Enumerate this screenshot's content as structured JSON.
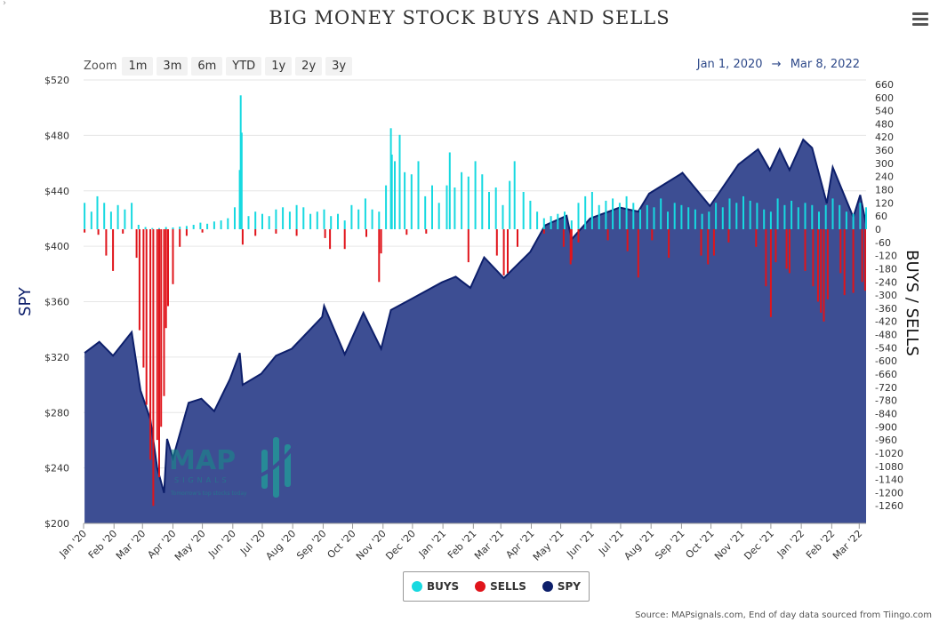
{
  "corner_mark": "›",
  "title": "BIG MONEY STOCK BUYS AND SELLS",
  "zoom": {
    "label": "Zoom",
    "buttons": [
      "1m",
      "3m",
      "6m",
      "YTD",
      "1y",
      "2y",
      "3y"
    ]
  },
  "date_range": {
    "from": "Jan 1, 2020",
    "arrow": "→",
    "to": "Mar 8, 2022"
  },
  "credits": "Source: MAPsignals.com, End of day data sourced from Tiingo.com",
  "logo": {
    "text": "MAP",
    "sub": "SIGNALS",
    "tagline": "Tomorrow's top stocks today"
  },
  "colors": {
    "buys": "#17d9e0",
    "sells": "#e0141b",
    "spy": "#3d4e93",
    "spy_line": "#0d1f6b"
  },
  "icons": {
    "menu": "hamburger-menu-icon"
  },
  "chart_data": {
    "type": "area",
    "x_range": [
      "2020-01-01",
      "2022-03-08"
    ],
    "x_ticks": [
      "Jan '20",
      "Feb '20",
      "Mar '20",
      "Apr '20",
      "May '20",
      "Jun '20",
      "Jul '20",
      "Aug '20",
      "Sep '20",
      "Oct '20",
      "Nov '20",
      "Dec '20",
      "Jan '21",
      "Feb '21",
      "Mar '21",
      "Apr '21",
      "May '21",
      "Jun '21",
      "Jul '21",
      "Aug '21",
      "Sep '21",
      "Oct '21",
      "Nov '21",
      "Dec '21",
      "Jan '22",
      "Feb '22",
      "Mar '22"
    ],
    "y_left": {
      "label": "SPY",
      "range": [
        200,
        520
      ],
      "ticks": [
        "$200",
        "$240",
        "$280",
        "$320",
        "$360",
        "$400",
        "$440",
        "$480",
        "$520"
      ]
    },
    "y_right": {
      "label": "BUYS / SELLS",
      "range": [
        -1340,
        680
      ],
      "ticks": [
        "660",
        "600",
        "540",
        "480",
        "420",
        "360",
        "300",
        "240",
        "180",
        "120",
        "60",
        "0",
        "-60",
        "-120",
        "-180",
        "-240",
        "-300",
        "-360",
        "-420",
        "-480",
        "-540",
        "-600",
        "-660",
        "-720",
        "-780",
        "-840",
        "-900",
        "-960",
        "-1020",
        "-1080",
        "-1140",
        "-1200",
        "-1260"
      ]
    },
    "legend": {
      "position": "bottom-center",
      "items": [
        {
          "name": "BUYS",
          "color": "#17d9e0"
        },
        {
          "name": "SELLS",
          "color": "#e0141b"
        },
        {
          "name": "SPY",
          "color": "#0d1f6b"
        }
      ]
    },
    "grid": "horizontal",
    "series": [
      {
        "name": "SPY",
        "type": "area",
        "axis": "left",
        "points": [
          [
            "2020-01-02",
            323
          ],
          [
            "2020-01-17",
            331
          ],
          [
            "2020-01-31",
            321
          ],
          [
            "2020-02-19",
            338
          ],
          [
            "2020-02-28",
            296
          ],
          [
            "2020-03-09",
            275
          ],
          [
            "2020-03-16",
            240
          ],
          [
            "2020-03-23",
            222
          ],
          [
            "2020-03-26",
            261
          ],
          [
            "2020-04-01",
            247
          ],
          [
            "2020-04-17",
            287
          ],
          [
            "2020-04-30",
            290
          ],
          [
            "2020-05-13",
            281
          ],
          [
            "2020-05-29",
            304
          ],
          [
            "2020-06-08",
            323
          ],
          [
            "2020-06-11",
            300
          ],
          [
            "2020-06-30",
            308
          ],
          [
            "2020-07-15",
            321
          ],
          [
            "2020-07-31",
            326
          ],
          [
            "2020-08-31",
            349
          ],
          [
            "2020-09-02",
            357
          ],
          [
            "2020-09-23",
            322
          ],
          [
            "2020-10-12",
            352
          ],
          [
            "2020-10-30",
            326
          ],
          [
            "2020-11-09",
            354
          ],
          [
            "2020-11-30",
            362
          ],
          [
            "2020-12-31",
            374
          ],
          [
            "2021-01-14",
            378
          ],
          [
            "2021-01-29",
            370
          ],
          [
            "2021-02-12",
            392
          ],
          [
            "2021-03-04",
            377
          ],
          [
            "2021-03-31",
            396
          ],
          [
            "2021-04-15",
            415
          ],
          [
            "2021-05-07",
            422
          ],
          [
            "2021-05-12",
            405
          ],
          [
            "2021-05-31",
            420
          ],
          [
            "2021-06-30",
            428
          ],
          [
            "2021-07-19",
            425
          ],
          [
            "2021-07-30",
            438
          ],
          [
            "2021-08-31",
            452
          ],
          [
            "2021-09-02",
            453
          ],
          [
            "2021-09-30",
            429
          ],
          [
            "2021-10-29",
            459
          ],
          [
            "2021-11-18",
            470
          ],
          [
            "2021-11-30",
            455
          ],
          [
            "2021-12-10",
            470
          ],
          [
            "2021-12-20",
            455
          ],
          [
            "2022-01-03",
            477
          ],
          [
            "2022-01-12",
            471
          ],
          [
            "2022-01-27",
            431
          ],
          [
            "2022-02-02",
            457
          ],
          [
            "2022-02-23",
            421
          ],
          [
            "2022-03-02",
            437
          ],
          [
            "2022-03-08",
            416
          ]
        ]
      },
      {
        "name": "BUYS",
        "type": "bar",
        "axis": "right",
        "points": [
          [
            "2020-01-02",
            120
          ],
          [
            "2020-01-09",
            80
          ],
          [
            "2020-01-15",
            150
          ],
          [
            "2020-01-22",
            120
          ],
          [
            "2020-01-29",
            80
          ],
          [
            "2020-02-05",
            110
          ],
          [
            "2020-02-12",
            90
          ],
          [
            "2020-02-19",
            120
          ],
          [
            "2020-02-26",
            20
          ],
          [
            "2020-03-04",
            10
          ],
          [
            "2020-03-11",
            5
          ],
          [
            "2020-03-18",
            5
          ],
          [
            "2020-03-25",
            10
          ],
          [
            "2020-04-01",
            8
          ],
          [
            "2020-04-08",
            12
          ],
          [
            "2020-04-15",
            15
          ],
          [
            "2020-04-22",
            20
          ],
          [
            "2020-04-29",
            30
          ],
          [
            "2020-05-06",
            25
          ],
          [
            "2020-05-13",
            35
          ],
          [
            "2020-05-20",
            40
          ],
          [
            "2020-05-27",
            50
          ],
          [
            "2020-06-03",
            100
          ],
          [
            "2020-06-08",
            270
          ],
          [
            "2020-06-09",
            610
          ],
          [
            "2020-06-10",
            440
          ],
          [
            "2020-06-17",
            60
          ],
          [
            "2020-06-24",
            80
          ],
          [
            "2020-07-01",
            70
          ],
          [
            "2020-07-08",
            60
          ],
          [
            "2020-07-15",
            90
          ],
          [
            "2020-07-22",
            100
          ],
          [
            "2020-07-29",
            80
          ],
          [
            "2020-08-05",
            110
          ],
          [
            "2020-08-12",
            100
          ],
          [
            "2020-08-19",
            70
          ],
          [
            "2020-08-26",
            80
          ],
          [
            "2020-09-02",
            90
          ],
          [
            "2020-09-09",
            60
          ],
          [
            "2020-09-16",
            70
          ],
          [
            "2020-09-23",
            40
          ],
          [
            "2020-09-30",
            110
          ],
          [
            "2020-10-07",
            90
          ],
          [
            "2020-10-14",
            140
          ],
          [
            "2020-10-21",
            90
          ],
          [
            "2020-10-28",
            80
          ],
          [
            "2020-11-04",
            200
          ],
          [
            "2020-11-09",
            460
          ],
          [
            "2020-11-10",
            340
          ],
          [
            "2020-11-13",
            310
          ],
          [
            "2020-11-18",
            430
          ],
          [
            "2020-11-23",
            260
          ],
          [
            "2020-11-30",
            250
          ],
          [
            "2020-12-07",
            310
          ],
          [
            "2020-12-14",
            150
          ],
          [
            "2020-12-21",
            200
          ],
          [
            "2020-12-28",
            120
          ],
          [
            "2021-01-05",
            200
          ],
          [
            "2021-01-08",
            350
          ],
          [
            "2021-01-13",
            190
          ],
          [
            "2021-01-20",
            260
          ],
          [
            "2021-01-27",
            240
          ],
          [
            "2021-02-03",
            310
          ],
          [
            "2021-02-10",
            250
          ],
          [
            "2021-02-17",
            170
          ],
          [
            "2021-02-24",
            190
          ],
          [
            "2021-03-03",
            110
          ],
          [
            "2021-03-10",
            220
          ],
          [
            "2021-03-15",
            310
          ],
          [
            "2021-03-24",
            170
          ],
          [
            "2021-03-31",
            130
          ],
          [
            "2021-04-07",
            80
          ],
          [
            "2021-04-14",
            50
          ],
          [
            "2021-04-21",
            60
          ],
          [
            "2021-04-28",
            70
          ],
          [
            "2021-05-05",
            80
          ],
          [
            "2021-05-12",
            40
          ],
          [
            "2021-05-19",
            120
          ],
          [
            "2021-05-26",
            150
          ],
          [
            "2021-06-02",
            170
          ],
          [
            "2021-06-09",
            110
          ],
          [
            "2021-06-16",
            130
          ],
          [
            "2021-06-23",
            140
          ],
          [
            "2021-06-30",
            120
          ],
          [
            "2021-07-07",
            150
          ],
          [
            "2021-07-14",
            120
          ],
          [
            "2021-07-21",
            90
          ],
          [
            "2021-07-28",
            110
          ],
          [
            "2021-08-04",
            100
          ],
          [
            "2021-08-11",
            140
          ],
          [
            "2021-08-18",
            80
          ],
          [
            "2021-08-25",
            120
          ],
          [
            "2021-09-01",
            110
          ],
          [
            "2021-09-08",
            100
          ],
          [
            "2021-09-15",
            90
          ],
          [
            "2021-09-22",
            70
          ],
          [
            "2021-09-29",
            80
          ],
          [
            "2021-10-06",
            120
          ],
          [
            "2021-10-13",
            100
          ],
          [
            "2021-10-20",
            140
          ],
          [
            "2021-10-27",
            120
          ],
          [
            "2021-11-03",
            150
          ],
          [
            "2021-11-10",
            130
          ],
          [
            "2021-11-17",
            120
          ],
          [
            "2021-11-24",
            90
          ],
          [
            "2021-12-01",
            80
          ],
          [
            "2021-12-08",
            140
          ],
          [
            "2021-12-15",
            110
          ],
          [
            "2021-12-22",
            130
          ],
          [
            "2021-12-29",
            100
          ],
          [
            "2022-01-05",
            120
          ],
          [
            "2022-01-12",
            110
          ],
          [
            "2022-01-19",
            80
          ],
          [
            "2022-01-26",
            110
          ],
          [
            "2022-02-02",
            140
          ],
          [
            "2022-02-09",
            110
          ],
          [
            "2022-02-16",
            80
          ],
          [
            "2022-02-23",
            70
          ],
          [
            "2022-03-02",
            120
          ],
          [
            "2022-03-08",
            100
          ]
        ]
      },
      {
        "name": "SELLS",
        "type": "bar",
        "axis": "right",
        "points": [
          [
            "2020-01-02",
            -15
          ],
          [
            "2020-01-16",
            -25
          ],
          [
            "2020-01-24",
            -120
          ],
          [
            "2020-01-31",
            -190
          ],
          [
            "2020-02-10",
            -20
          ],
          [
            "2020-02-24",
            -130
          ],
          [
            "2020-02-27",
            -460
          ],
          [
            "2020-03-02",
            -630
          ],
          [
            "2020-03-05",
            -800
          ],
          [
            "2020-03-09",
            -1050
          ],
          [
            "2020-03-12",
            -1260
          ],
          [
            "2020-03-16",
            -960
          ],
          [
            "2020-03-18",
            -1130
          ],
          [
            "2020-03-20",
            -900
          ],
          [
            "2020-03-23",
            -760
          ],
          [
            "2020-03-25",
            -450
          ],
          [
            "2020-03-27",
            -350
          ],
          [
            "2020-04-01",
            -250
          ],
          [
            "2020-04-08",
            -80
          ],
          [
            "2020-04-15",
            -30
          ],
          [
            "2020-05-01",
            -15
          ],
          [
            "2020-06-11",
            -70
          ],
          [
            "2020-06-24",
            -30
          ],
          [
            "2020-07-15",
            -20
          ],
          [
            "2020-08-05",
            -30
          ],
          [
            "2020-09-03",
            -40
          ],
          [
            "2020-09-08",
            -90
          ],
          [
            "2020-09-23",
            -90
          ],
          [
            "2020-10-15",
            -35
          ],
          [
            "2020-10-28",
            -240
          ],
          [
            "2020-10-30",
            -110
          ],
          [
            "2020-11-25",
            -25
          ],
          [
            "2020-12-15",
            -20
          ],
          [
            "2021-01-27",
            -150
          ],
          [
            "2021-02-25",
            -120
          ],
          [
            "2021-03-04",
            -210
          ],
          [
            "2021-03-08",
            -200
          ],
          [
            "2021-03-18",
            -80
          ],
          [
            "2021-04-14",
            -20
          ],
          [
            "2021-05-04",
            -80
          ],
          [
            "2021-05-11",
            -160
          ],
          [
            "2021-05-12",
            -140
          ],
          [
            "2021-05-19",
            -60
          ],
          [
            "2021-06-18",
            -50
          ],
          [
            "2021-07-08",
            -100
          ],
          [
            "2021-07-19",
            -220
          ],
          [
            "2021-08-02",
            -50
          ],
          [
            "2021-08-19",
            -130
          ],
          [
            "2021-09-21",
            -120
          ],
          [
            "2021-09-28",
            -160
          ],
          [
            "2021-10-04",
            -120
          ],
          [
            "2021-10-19",
            -60
          ],
          [
            "2021-11-16",
            -80
          ],
          [
            "2021-11-26",
            -260
          ],
          [
            "2021-12-01",
            -400
          ],
          [
            "2021-12-06",
            -150
          ],
          [
            "2021-12-17",
            -180
          ],
          [
            "2021-12-20",
            -200
          ],
          [
            "2022-01-05",
            -190
          ],
          [
            "2022-01-13",
            -260
          ],
          [
            "2022-01-18",
            -330
          ],
          [
            "2022-01-21",
            -380
          ],
          [
            "2022-01-24",
            -420
          ],
          [
            "2022-01-28",
            -320
          ],
          [
            "2022-02-10",
            -200
          ],
          [
            "2022-02-14",
            -300
          ],
          [
            "2022-02-23",
            -290
          ],
          [
            "2022-03-04",
            -240
          ],
          [
            "2022-03-07",
            -280
          ]
        ]
      }
    ]
  }
}
